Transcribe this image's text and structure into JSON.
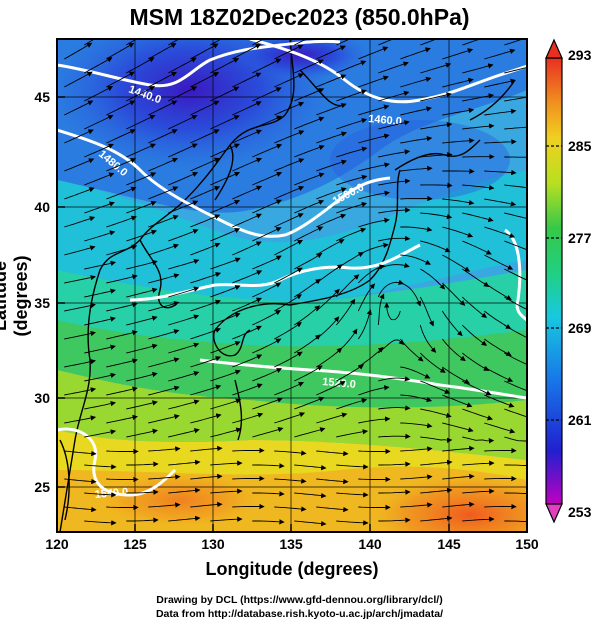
{
  "title": "MSM 18Z02Dec2023 (850.0hPa)",
  "x_axis": {
    "label": "Longitude (degrees)",
    "ticks": [
      "120",
      "125",
      "130",
      "135",
      "140",
      "145",
      "150"
    ]
  },
  "y_axis": {
    "label": "Latitude  (degrees)",
    "ticks": [
      "25",
      "30",
      "35",
      "40",
      "45"
    ]
  },
  "colorbar": {
    "ticks": [
      "293",
      "285",
      "277",
      "269",
      "261",
      "253"
    ],
    "range": [
      253,
      293
    ],
    "colors": [
      "#c000c0",
      "#2020d0",
      "#1878e8",
      "#18c8e0",
      "#20d080",
      "#38c848",
      "#b8e020",
      "#f0d020",
      "#f09020",
      "#e83020"
    ]
  },
  "contours": [
    {
      "label": "1440.0"
    },
    {
      "label": "1460.0"
    },
    {
      "label": "1480.0"
    },
    {
      "label": "1500.0"
    },
    {
      "label": "1520.0"
    },
    {
      "label": "1540.0"
    }
  ],
  "credits": {
    "line1": "Drawing by DCL (https://www.gfd-dennou.org/library/dcl/)",
    "line2": "Data from http://database.rish.kyoto-u.ac.jp/arch/jmadata/"
  }
}
